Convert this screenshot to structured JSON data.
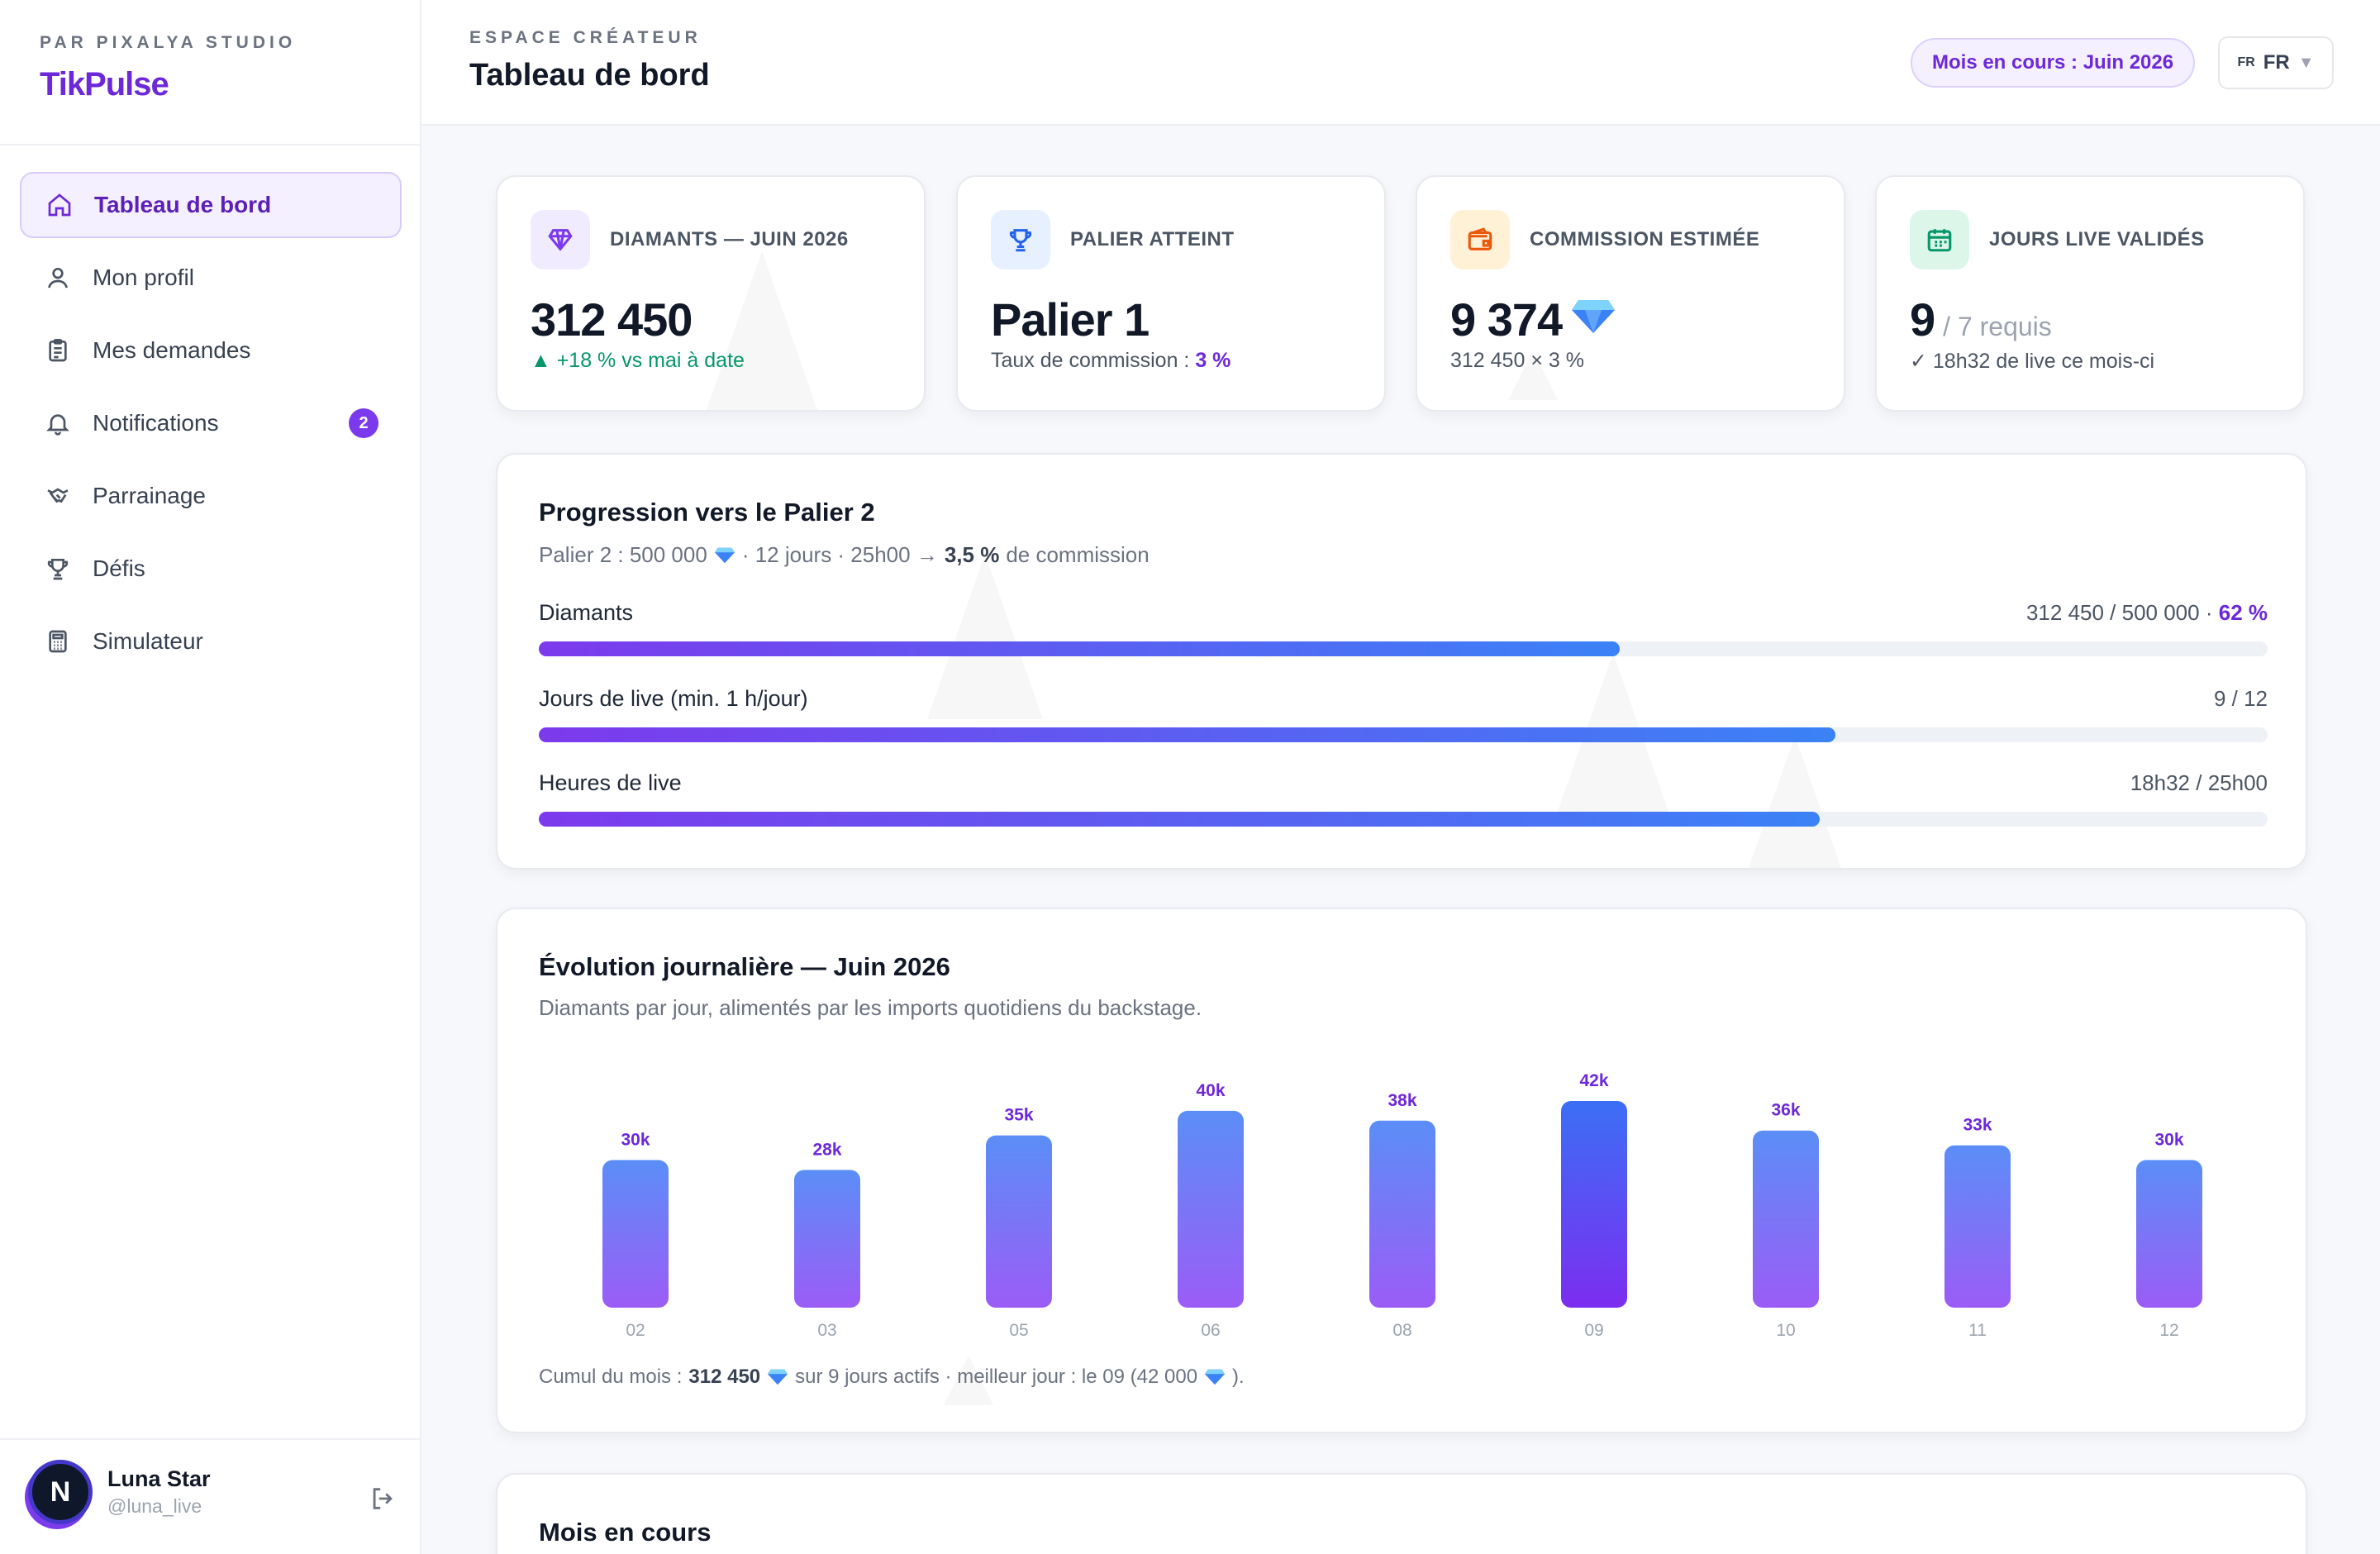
{
  "sidebar": {
    "kicker": "PAR PIXALYA STUDIO",
    "brand": "TikPulse",
    "nav": [
      {
        "label": "Tableau de bord",
        "icon": "home-icon",
        "active": true
      },
      {
        "label": "Mon profil",
        "icon": "user-icon"
      },
      {
        "label": "Mes demandes",
        "icon": "clipboard-icon"
      },
      {
        "label": "Notifications",
        "icon": "bell-icon",
        "badge": "2"
      },
      {
        "label": "Parrainage",
        "icon": "handshake-icon"
      },
      {
        "label": "Défis",
        "icon": "trophy-icon"
      },
      {
        "label": "Simulateur",
        "icon": "calculator-icon"
      }
    ],
    "user": {
      "initial": "N",
      "name": "Luna Star",
      "handle": "@luna_live"
    }
  },
  "header": {
    "kicker": "ESPACE CRÉATEUR",
    "title": "Tableau de bord",
    "month_pill": "Mois en cours : Juin 2026",
    "lang_flag": "FR",
    "lang_code": "FR"
  },
  "stats": [
    {
      "label": "DIAMANTS — JUIN 2026",
      "value": "312 450",
      "sub_arrow": "▲",
      "sub": "+18 % vs mai à date",
      "icon": "diamond-icon",
      "color": "#7c3aed"
    },
    {
      "label": "PALIER ATTEINT",
      "value": "Palier 1",
      "sub": "Taux de commission : ",
      "sub_strong": "3 %",
      "icon": "trophy-icon",
      "color": "#2563eb"
    },
    {
      "label": "COMMISSION ESTIMÉE",
      "value": "9 374",
      "sub": "312 450 × 3 %",
      "icon": "wallet-icon",
      "color": "#ea580c"
    },
    {
      "label": "JOURS LIVE VALIDÉS",
      "value": "9",
      "value_suffix": "/ 7 requis",
      "sub": "✓ 18h32 de live ce mois-ci",
      "icon": "calendar-icon",
      "color": "#059669"
    }
  ],
  "progression": {
    "title": "Progression vers le Palier 2",
    "sub_prefix": "Palier 2 : 500 000",
    "sub_mid": "· 12 jours · 25h00 →",
    "sub_strong": "3,5 %",
    "sub_suffix": "de commission",
    "rows": [
      {
        "label": "Diamants",
        "value": "312 450 / 500 000 ·",
        "value_strong": "62 %",
        "progress": 0.625
      },
      {
        "label": "Jours de live (min. 1 h/jour)",
        "value": "9 / 12",
        "value_strong": "",
        "progress": 0.75
      },
      {
        "label": "Heures de live",
        "value": "18h32 / 25h00",
        "value_strong": "",
        "progress": 0.741
      }
    ]
  },
  "chart": {
    "title": "Évolution journalière — Juin 2026",
    "subtitle": "Diamants par jour, alimentés par les imports quotidiens du backstage.",
    "foot_prefix": "Cumul du mois :",
    "foot_total": "312 450",
    "foot_mid": "sur 9 jours actifs · meilleur jour : le 09 (42 000",
    "foot_end": ")."
  },
  "chart_data": {
    "type": "bar",
    "categories": [
      "02",
      "03",
      "05",
      "06",
      "08",
      "09",
      "10",
      "11",
      "12"
    ],
    "values": [
      30,
      28,
      35,
      40,
      38,
      42,
      36,
      33,
      30
    ],
    "data_labels": [
      "30k",
      "28k",
      "35k",
      "40k",
      "38k",
      "42k",
      "36k",
      "33k",
      "30k"
    ],
    "highlight": "09",
    "title": "",
    "xlabel": "",
    "ylabel": "",
    "grid": false,
    "colors": {
      "bar_top": "#5b8ef7",
      "bar_bottom": "#9b5cf6",
      "highlight_top": "#3b6ff5",
      "highlight_bottom": "#7c2df0",
      "label": "#6d28d9"
    }
  },
  "month_section": {
    "title": "Mois en cours"
  }
}
